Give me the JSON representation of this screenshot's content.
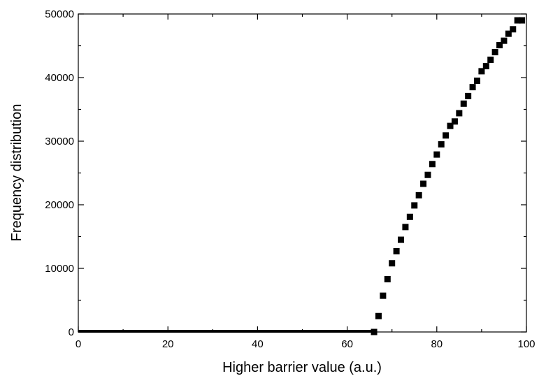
{
  "chart_data": {
    "type": "scatter",
    "title": "",
    "xlabel": "Higher barrier value (a.u.)",
    "ylabel": "Frequency distribution",
    "xlim": [
      0,
      100
    ],
    "ylim": [
      0,
      50000
    ],
    "x_ticks": [
      0,
      20,
      40,
      60,
      80,
      100
    ],
    "y_ticks": [
      0,
      10000,
      20000,
      30000,
      40000,
      50000
    ],
    "x_tick_labels": [
      "0",
      "20",
      "40",
      "60",
      "80",
      "100"
    ],
    "y_tick_labels": [
      "0",
      "10000",
      "20000",
      "30000",
      "40000",
      "50000"
    ],
    "grid": false,
    "legend": false,
    "marker": "square",
    "marker_color": "#000000",
    "baseline": {
      "x_range": [
        0,
        66
      ],
      "y": 0
    },
    "series": [
      {
        "points": [
          [
            66,
            0
          ],
          [
            67,
            2500
          ],
          [
            68,
            5700
          ],
          [
            69,
            8300
          ],
          [
            70,
            10800
          ],
          [
            71,
            12700
          ],
          [
            72,
            14500
          ],
          [
            73,
            16500
          ],
          [
            74,
            18100
          ],
          [
            75,
            19900
          ],
          [
            76,
            21500
          ],
          [
            77,
            23300
          ],
          [
            78,
            24700
          ],
          [
            79,
            26400
          ],
          [
            80,
            27900
          ],
          [
            81,
            29500
          ],
          [
            82,
            30900
          ],
          [
            83,
            32400
          ],
          [
            84,
            33100
          ],
          [
            85,
            34400
          ],
          [
            86,
            35900
          ],
          [
            87,
            37100
          ],
          [
            88,
            38500
          ],
          [
            89,
            39500
          ],
          [
            90,
            41000
          ],
          [
            91,
            41800
          ],
          [
            92,
            42800
          ],
          [
            93,
            44000
          ],
          [
            94,
            45100
          ],
          [
            95,
            45800
          ],
          [
            96,
            46900
          ],
          [
            97,
            47600
          ],
          [
            98,
            49000
          ],
          [
            99,
            49000
          ]
        ]
      }
    ]
  }
}
